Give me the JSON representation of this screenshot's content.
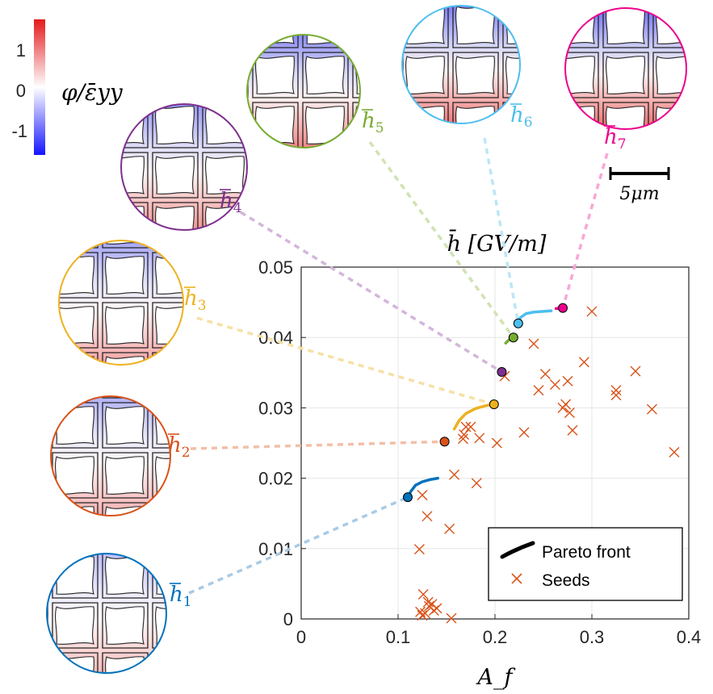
{
  "chart_data": {
    "type": "scatter",
    "title": "h̄ [GV/m]",
    "xlabel": "A_f",
    "ylabel": "",
    "xlim": [
      0,
      0.4
    ],
    "ylim": [
      0,
      0.05
    ],
    "xticks": [
      "0",
      "0.1",
      "0.2",
      "0.3",
      "0.4"
    ],
    "yticks": [
      "0",
      "0.01",
      "0.02",
      "0.03",
      "0.04",
      "0.05"
    ],
    "grid": true,
    "legend_position": "bottom-right",
    "legend": [
      "Pareto front",
      "Seeds"
    ],
    "seeds": {
      "name": "Seeds",
      "color": "#D95319",
      "points": [
        [
          0.135,
          0.0021
        ],
        [
          0.14,
          0.0015
        ],
        [
          0.128,
          0.0008
        ],
        [
          0.132,
          0.0018
        ],
        [
          0.126,
          0.0035
        ],
        [
          0.137,
          0.0012
        ],
        [
          0.125,
          0.0005
        ],
        [
          0.131,
          0.0024
        ],
        [
          0.155,
          0.0001
        ],
        [
          0.123,
          0.001
        ],
        [
          0.122,
          0.0099
        ],
        [
          0.13,
          0.0146
        ],
        [
          0.125,
          0.0176
        ],
        [
          0.153,
          0.0128
        ],
        [
          0.158,
          0.0205
        ],
        [
          0.181,
          0.0193
        ],
        [
          0.168,
          0.0262
        ],
        [
          0.17,
          0.0273
        ],
        [
          0.167,
          0.0256
        ],
        [
          0.175,
          0.0273
        ],
        [
          0.184,
          0.0257
        ],
        [
          0.202,
          0.025
        ],
        [
          0.21,
          0.0345
        ],
        [
          0.23,
          0.0265
        ],
        [
          0.24,
          0.0391
        ],
        [
          0.245,
          0.0325
        ],
        [
          0.252,
          0.0348
        ],
        [
          0.262,
          0.0333
        ],
        [
          0.27,
          0.03
        ],
        [
          0.273,
          0.0305
        ],
        [
          0.277,
          0.0293
        ],
        [
          0.28,
          0.0268
        ],
        [
          0.275,
          0.0338
        ],
        [
          0.292,
          0.0365
        ],
        [
          0.3,
          0.0437
        ],
        [
          0.325,
          0.0318
        ],
        [
          0.325,
          0.0325
        ],
        [
          0.345,
          0.0352
        ],
        [
          0.362,
          0.0298
        ],
        [
          0.385,
          0.0237
        ]
      ]
    },
    "pareto_fronts": [
      {
        "label": "h̄1",
        "color": "#0072BD",
        "light": "#A9CBE5",
        "point": [
          0.11,
          0.0173
        ],
        "curve": [
          [
            0.11,
            0.0173
          ],
          [
            0.113,
            0.0181
          ],
          [
            0.118,
            0.019
          ],
          [
            0.125,
            0.0195
          ],
          [
            0.133,
            0.0198
          ],
          [
            0.141,
            0.02
          ]
        ]
      },
      {
        "label": "h̄2",
        "color": "#D95319",
        "light": "#F2BFA8",
        "point": [
          0.148,
          0.0252
        ],
        "curve": [
          [
            0.148,
            0.0252
          ],
          [
            0.15,
            0.0253
          ]
        ]
      },
      {
        "label": "h̄3",
        "color": "#EDB120",
        "light": "#F7E0A6",
        "point": [
          0.199,
          0.0305
        ],
        "curve": [
          [
            0.158,
            0.027
          ],
          [
            0.163,
            0.0282
          ],
          [
            0.17,
            0.0292
          ],
          [
            0.18,
            0.0299
          ],
          [
            0.19,
            0.0303
          ],
          [
            0.199,
            0.0305
          ]
        ]
      },
      {
        "label": "h̄4",
        "color": "#7E2F8E",
        "light": "#D3B6DA",
        "point": [
          0.207,
          0.0351
        ],
        "curve": [
          [
            0.207,
            0.0351
          ],
          [
            0.209,
            0.0352
          ]
        ]
      },
      {
        "label": "h̄5",
        "color": "#77AC30",
        "light": "#D0E3B4",
        "point": [
          0.219,
          0.04
        ],
        "curve": [
          [
            0.211,
            0.0392
          ],
          [
            0.214,
            0.0396
          ],
          [
            0.219,
            0.04
          ]
        ]
      },
      {
        "label": "h̄6",
        "color": "#4DBEEE",
        "light": "#BDE6F7",
        "point": [
          0.224,
          0.042
        ],
        "curve": [
          [
            0.224,
            0.042
          ],
          [
            0.226,
            0.0428
          ],
          [
            0.232,
            0.0434
          ],
          [
            0.24,
            0.0436
          ],
          [
            0.25,
            0.0437
          ],
          [
            0.258,
            0.0438
          ]
        ]
      },
      {
        "label": "h̄7",
        "color": "#EC008C",
        "light": "#F8A8D6",
        "point": [
          0.27,
          0.0442
        ],
        "curve": [
          [
            0.263,
            0.0441
          ],
          [
            0.27,
            0.0442
          ]
        ]
      }
    ]
  },
  "colorbar": {
    "label": "φ/ε̄yy",
    "ticks": [
      "1",
      "0",
      "-1"
    ],
    "colors": [
      "#E41A1C",
      "#FFFFFF",
      "#1414FF"
    ]
  },
  "scalebar": {
    "label": "5μm"
  },
  "micrographs": [
    {
      "name": "h1",
      "label_main": "h",
      "label_sub": "1"
    },
    {
      "name": "h2",
      "label_main": "h",
      "label_sub": "2"
    },
    {
      "name": "h3",
      "label_main": "h",
      "label_sub": "3"
    },
    {
      "name": "h4",
      "label_main": "h",
      "label_sub": "4"
    },
    {
      "name": "h5",
      "label_main": "h",
      "label_sub": "5"
    },
    {
      "name": "h6",
      "label_main": "h",
      "label_sub": "6"
    },
    {
      "name": "h7",
      "label_main": "h",
      "label_sub": "7"
    }
  ]
}
